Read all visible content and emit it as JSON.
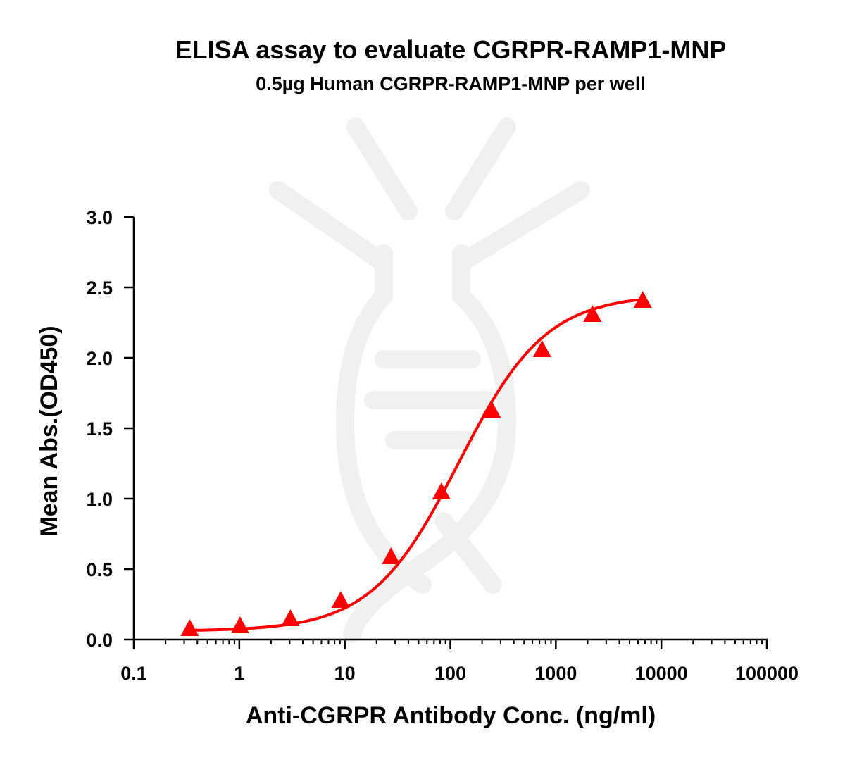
{
  "chart_data": {
    "type": "line",
    "title": "ELISA assay to evaluate CGRPR-RAMP1-MNP",
    "subtitle": "0.5µg Human CGRPR-RAMP1-MNP per well",
    "xlabel": "Anti-CGRPR Antibody Conc. (ng/ml)",
    "ylabel": "Mean Abs.(OD450)",
    "xscale": "log",
    "xlim": [
      0.1,
      100000
    ],
    "ylim": [
      0,
      3.0
    ],
    "xticks": [
      "0.1",
      "1",
      "10",
      "100",
      "1000",
      "10000",
      "100000"
    ],
    "yticks": [
      "0.0",
      "0.5",
      "1.0",
      "1.5",
      "2.0",
      "2.5",
      "3.0"
    ],
    "grid": false,
    "series": [
      {
        "marker": "triangle",
        "color": "#ff0000",
        "x": [
          0.339,
          1.016,
          3.05,
          9.14,
          27.4,
          82.3,
          247,
          741,
          2222,
          6667
        ],
        "y": [
          0.07,
          0.09,
          0.14,
          0.27,
          0.58,
          1.04,
          1.62,
          2.05,
          2.3,
          2.4
        ],
        "fit": "sigmoidal curve"
      }
    ]
  }
}
